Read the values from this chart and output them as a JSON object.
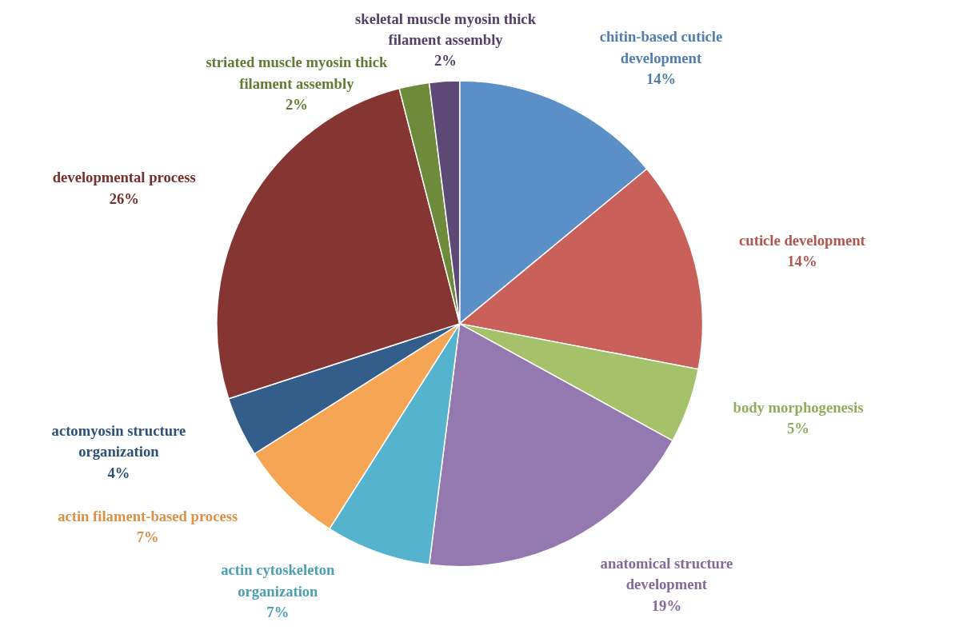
{
  "chart_data": {
    "type": "pie",
    "categories": [
      "chitin-based cuticle development",
      "cuticle development",
      "body morphogenesis",
      "anatomical structure development",
      "actin cytoskeleton organization",
      "actin filament-based process",
      "actomyosin structure organization",
      "developmental process",
      "striated muscle myosin thick filament assembly",
      "skeletal muscle myosin thick filament assembly"
    ],
    "values": [
      14,
      14,
      5,
      19,
      7,
      7,
      4,
      26,
      2,
      2
    ],
    "value_labels": [
      "14%",
      "14%",
      "5%",
      "19%",
      "7%",
      "7%",
      "4%",
      "26%",
      "2%",
      "2%"
    ],
    "colors": [
      "#5b8fc7",
      "#c9605a",
      "#a5c26a",
      "#9478b0",
      "#56b3cd",
      "#f5a554",
      "#335d8a",
      "#863632",
      "#6e8a3b",
      "#5d4876"
    ]
  }
}
